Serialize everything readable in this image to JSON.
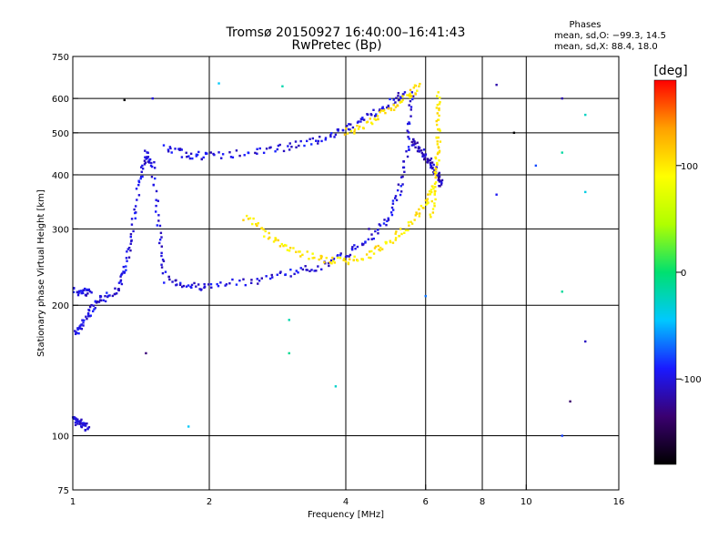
{
  "header": {
    "title_line1": "Tromsø 20150927 16:40:00–16:41:43",
    "title_line2": "RwPretec (Bp)",
    "phases_title": "Phases",
    "phases_o": "mean, sd,O:  −99.3, 14.5",
    "phases_x": "mean, sd,X:  88.4, 18.0"
  },
  "chart_data": {
    "type": "scatter",
    "xlabel": "Frequency [MHz]",
    "ylabel": "Stationary phase Virtual Height [km]",
    "xscale": "log",
    "yscale": "log",
    "xlim": [
      1,
      16
    ],
    "ylim": [
      75,
      750
    ],
    "xticks": [
      1,
      2,
      4,
      6,
      8,
      10,
      16
    ],
    "xtick_labels": [
      "1",
      "2",
      "4",
      "6",
      "8",
      "10",
      "16"
    ],
    "yticks": [
      75,
      100,
      200,
      300,
      400,
      500,
      600,
      750
    ],
    "ytick_labels": [
      "75",
      "100",
      "200",
      "300",
      "400",
      "500",
      "600",
      "750"
    ],
    "grid": true,
    "colorbar": {
      "label": "[deg]",
      "range": [
        -180,
        180
      ],
      "ticks": [
        100,
        0,
        -100
      ],
      "tick_labels": [
        "100",
        "0",
        "-100"
      ],
      "colormap": [
        "#000000",
        "#3a0070",
        "#1a1aff",
        "#00c8ff",
        "#00e070",
        "#b0ff00",
        "#ffff00",
        "#ffa000",
        "#ff0000"
      ]
    },
    "series": [
      {
        "points": [
          [
            1.15,
            205
          ],
          [
            1.25,
            215
          ],
          [
            1.3,
            240
          ],
          [
            1.35,
            290
          ],
          [
            1.4,
            380
          ],
          [
            1.45,
            450
          ],
          [
            1.5,
            420
          ],
          [
            1.55,
            300
          ],
          [
            1.6,
            230
          ],
          [
            1.8,
            222
          ],
          [
            2.0,
            221
          ],
          [
            2.5,
            228
          ],
          [
            3.0,
            238
          ],
          [
            3.5,
            245
          ],
          [
            4.0,
            262
          ],
          [
            4.5,
            285
          ],
          [
            5.0,
            320
          ],
          [
            5.3,
            380
          ],
          [
            5.5,
            480
          ],
          [
            5.6,
            620
          ]
        ],
        "phase": -100
      },
      {
        "points": [
          [
            1.6,
            460
          ],
          [
            1.8,
            445
          ],
          [
            2.0,
            442
          ],
          [
            2.5,
            450
          ],
          [
            3.0,
            465
          ],
          [
            3.5,
            480
          ],
          [
            4.0,
            510
          ],
          [
            4.5,
            545
          ],
          [
            5.0,
            585
          ],
          [
            5.4,
            620
          ]
        ],
        "phase": -100
      },
      {
        "points": [
          [
            5.6,
            480
          ],
          [
            5.8,
            460
          ],
          [
            6.0,
            440
          ],
          [
            6.2,
            420
          ],
          [
            6.4,
            400
          ],
          [
            6.5,
            380
          ]
        ],
        "phase": -110
      },
      {
        "points": [
          [
            2.4,
            320
          ],
          [
            2.7,
            290
          ],
          [
            3.0,
            270
          ],
          [
            3.5,
            256
          ],
          [
            4.0,
            252
          ],
          [
            4.5,
            262
          ],
          [
            5.0,
            280
          ],
          [
            5.5,
            305
          ],
          [
            6.0,
            345
          ],
          [
            6.3,
            375
          ]
        ],
        "phase": 100
      },
      {
        "points": [
          [
            4.0,
            500
          ],
          [
            4.5,
            530
          ],
          [
            5.0,
            565
          ],
          [
            5.5,
            605
          ],
          [
            5.8,
            640
          ]
        ],
        "phase": 105
      },
      {
        "points": [
          [
            6.2,
            320
          ],
          [
            6.3,
            390
          ],
          [
            6.4,
            450
          ],
          [
            6.4,
            520
          ],
          [
            6.4,
            620
          ]
        ],
        "phase": 100
      },
      {
        "points": [
          [
            1.0,
            110
          ],
          [
            1.02,
            108
          ],
          [
            1.05,
            106
          ],
          [
            1.08,
            104
          ]
        ],
        "phase": -100
      },
      {
        "points": [
          [
            1.0,
            170
          ],
          [
            1.05,
            180
          ],
          [
            1.1,
            195
          ],
          [
            1.15,
            210
          ]
        ],
        "phase": -100
      },
      {
        "points": [
          [
            1.0,
            216
          ],
          [
            1.05,
            215
          ],
          [
            1.1,
            214
          ]
        ],
        "phase": -100
      },
      {
        "points": [
          [
            1.3,
            595
          ],
          [
            1.5,
            600
          ],
          [
            1.45,
            155
          ],
          [
            1.8,
            105
          ],
          [
            2.1,
            650
          ],
          [
            2.9,
            640
          ],
          [
            3.0,
            185
          ],
          [
            3.0,
            155
          ],
          [
            3.8,
            495
          ],
          [
            3.8,
            130
          ],
          [
            8.6,
            645
          ],
          [
            8.6,
            360
          ],
          [
            9.4,
            500
          ],
          [
            10.5,
            420
          ],
          [
            12.0,
            600
          ],
          [
            12.0,
            450
          ],
          [
            12.0,
            215
          ],
          [
            12.0,
            100
          ],
          [
            13.5,
            550
          ],
          [
            13.5,
            365
          ],
          [
            13.5,
            165
          ],
          [
            12.5,
            120
          ],
          [
            6.0,
            210
          ],
          [
            4.5,
            300
          ]
        ],
        "phase": -90
      }
    ]
  }
}
